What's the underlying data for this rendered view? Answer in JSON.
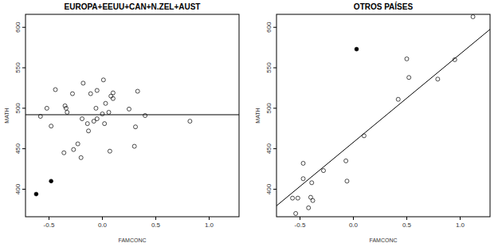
{
  "chart_data": [
    {
      "type": "scatter",
      "title": "EUROPA+EEUU+CAN+N.ZEL+AUST",
      "x_label": "FAMCONC",
      "y_label": "MATH",
      "xlim": [
        -0.72,
        1.28
      ],
      "ylim": [
        366,
        616
      ],
      "xticks": [
        -0.5,
        {
          "value": 0,
          "label": "0.0"
        },
        0.5,
        {
          "value": 1,
          "label": "1.0"
        }
      ],
      "yticks": [
        400,
        450,
        500,
        550,
        600
      ],
      "series": [
        {
          "type": "scatter",
          "marker": "open",
          "color": "#000000",
          "x": [
            -0.58,
            -0.52,
            -0.48,
            -0.44,
            -0.36,
            -0.35,
            -0.34,
            -0.33,
            -0.28,
            -0.27,
            -0.23,
            -0.2,
            -0.19,
            -0.18,
            -0.14,
            -0.13,
            -0.11,
            -0.08,
            -0.06,
            -0.05,
            -0.05,
            0.0,
            0.01,
            0.02,
            0.03,
            0.06,
            0.07,
            0.08,
            0.1,
            0.1,
            0.25,
            0.3,
            0.31,
            0.33,
            0.4,
            0.82
          ],
          "values": [
            490,
            500,
            478,
            523,
            445,
            503,
            500,
            495,
            518,
            449,
            456,
            439,
            487,
            531,
            481,
            472,
            518,
            484,
            500,
            487,
            522,
            493,
            535,
            481,
            506,
            495,
            447,
            515,
            519,
            512,
            499,
            453,
            477,
            521,
            491,
            484
          ]
        },
        {
          "type": "scatter",
          "marker": "filled",
          "color": "#000000",
          "x": [
            -0.62,
            -0.48
          ],
          "values": [
            394,
            410
          ]
        },
        {
          "type": "line",
          "line_style": "solid",
          "color": "#000000",
          "x": [
            -0.72,
            1.28
          ],
          "values": [
            492,
            492
          ]
        }
      ]
    },
    {
      "type": "scatter",
      "title": "OTROS PAÍSES",
      "x_label": "FAMCONC",
      "y_label": "MATH",
      "xlim": [
        -0.72,
        1.28
      ],
      "ylim": [
        366,
        616
      ],
      "xticks": [
        -0.5,
        {
          "value": 0,
          "label": "0.0"
        },
        0.5,
        {
          "value": 1,
          "label": "1.0"
        }
      ],
      "yticks": [
        400,
        450,
        500,
        550,
        600
      ],
      "series": [
        {
          "type": "scatter",
          "marker": "open",
          "color": "#000000",
          "x": [
            -0.57,
            -0.54,
            -0.52,
            -0.47,
            -0.47,
            -0.42,
            -0.4,
            -0.39,
            -0.38,
            -0.28,
            -0.07,
            -0.06,
            0.1,
            0.42,
            0.5,
            0.52,
            0.79,
            0.95,
            1.12
          ],
          "values": [
            389,
            370,
            389,
            432,
            413,
            377,
            390,
            408,
            386,
            423,
            435,
            410,
            466,
            511,
            561,
            538,
            536,
            560,
            613
          ]
        },
        {
          "type": "scatter",
          "marker": "filled",
          "color": "#000000",
          "x": [
            0.03
          ],
          "values": [
            573
          ]
        },
        {
          "type": "line",
          "line_style": "solid",
          "color": "#000000",
          "x": [
            -0.72,
            1.28
          ],
          "values": [
            379.5,
            597.5
          ]
        }
      ]
    }
  ]
}
